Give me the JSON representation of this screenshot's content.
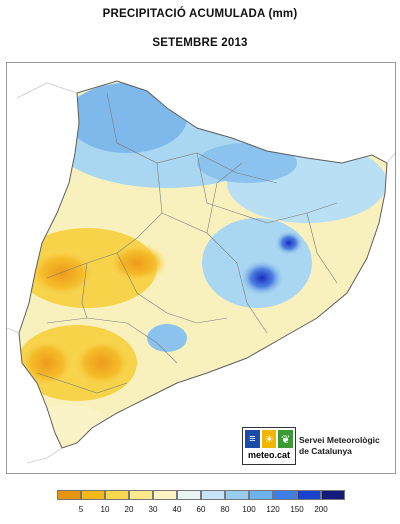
{
  "header": {
    "title": "PRECIPITACIÓ ACUMULADA (mm)",
    "subtitle": "SETEMBRE 2013"
  },
  "legend": {
    "unit": "mm",
    "swatches": [
      "#e6930e",
      "#f4b81a",
      "#f7d84a",
      "#faea8c",
      "#fbf3c1",
      "#e9f4f5",
      "#c6e4f5",
      "#98cdf0",
      "#6db2ec",
      "#3f7ee3",
      "#1a40cf",
      "#101b7a",
      "#2b1050",
      "#3c1078"
    ],
    "labels": [
      "5",
      "10",
      "20",
      "30",
      "40",
      "60",
      "80",
      "100",
      "120",
      "150",
      "200"
    ]
  },
  "logo": {
    "brand": "meteo.cat",
    "organization_line1": "Servei Meteorològic",
    "organization_line2": "de Catalunya",
    "icons": [
      "rain-icon",
      "sun-icon",
      "leaf-icon"
    ],
    "icon_colors": [
      "#1b4da8",
      "#f2b600",
      "#3a9a34"
    ]
  }
}
